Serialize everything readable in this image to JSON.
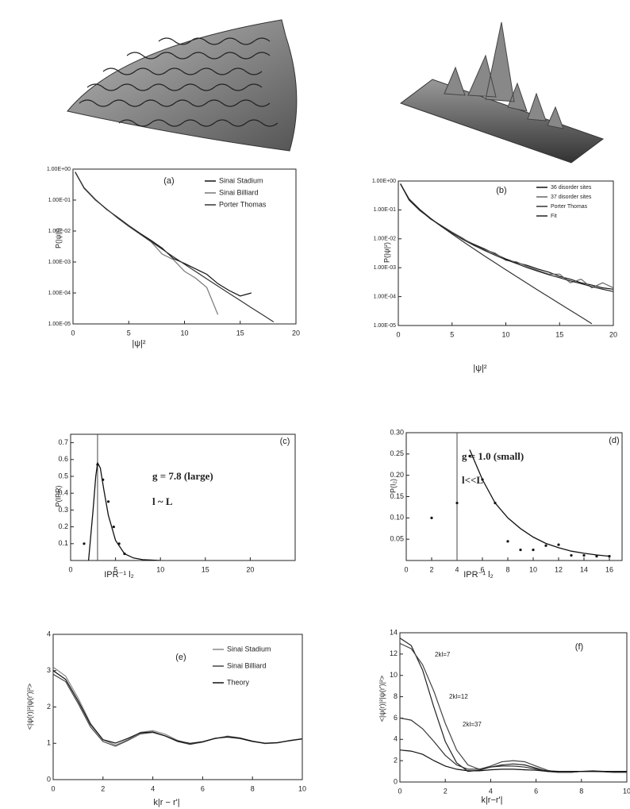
{
  "chart_data": [
    {
      "type": "line",
      "title": "(a)",
      "xlabel": "|ψ|²",
      "ylabel": "P(|ψ|²)",
      "yscale": "log",
      "xlim": [
        0,
        20
      ],
      "xticks": [
        0,
        5,
        10,
        15,
        20
      ],
      "ylim": [
        1e-05,
        1
      ],
      "yticks": [
        {
          "value": 1e-05,
          "label": "1.00E-05"
        },
        {
          "value": 0.0001,
          "label": "1.00E-04"
        },
        {
          "value": 0.001,
          "label": "1.00E-03"
        },
        {
          "value": 0.01,
          "label": "1.00E-02"
        },
        {
          "value": 0.1,
          "label": "1.00E-01"
        },
        {
          "value": 1,
          "label": "1.00E+00"
        }
      ],
      "x": [
        0.2,
        1,
        2,
        3,
        4,
        5,
        6,
        7,
        8,
        9,
        10,
        11,
        12,
        13,
        14,
        15,
        16,
        17,
        18,
        19
      ],
      "series": [
        {
          "name": "Sinai Stadium",
          "color": "#111111",
          "values": [
            0.8,
            0.25,
            0.105,
            0.05,
            0.028,
            0.015,
            0.0085,
            0.005,
            0.0028,
            0.0013,
            0.0009,
            0.0006,
            0.0004,
            0.0002,
            0.00012,
            8e-05,
            0.0001,
            null,
            null,
            null
          ]
        },
        {
          "name": "Sinai Billiard",
          "color": "#777777",
          "values": [
            0.78,
            0.24,
            0.1,
            0.052,
            0.026,
            0.014,
            0.008,
            0.0045,
            0.0018,
            0.0012,
            0.0005,
            0.0003,
            0.00015,
            2e-05,
            null,
            null,
            null,
            null,
            null,
            null
          ]
        },
        {
          "name": "Porter Thomas",
          "color": "#333333",
          "values": [
            0.807,
            0.242,
            0.104,
            0.0514,
            0.027,
            0.0146,
            0.0081,
            0.00455,
            0.00258,
            0.00148,
            0.00085,
            0.000492,
            0.000286,
            0.000166,
            9.72e-05,
            5.7e-05,
            3.34e-05,
            1.97e-05,
            1.16e-05,
            null
          ]
        }
      ]
    },
    {
      "type": "line",
      "title": "(b)",
      "xlabel": "|ψ|²",
      "ylabel": "P(|ψ|²)",
      "yscale": "log",
      "xlim": [
        0,
        20
      ],
      "xticks": [
        0,
        5,
        10,
        15,
        20
      ],
      "ylim": [
        1e-05,
        1
      ],
      "yticks": [
        {
          "value": 1e-05,
          "label": "1.00E-05"
        },
        {
          "value": 0.0001,
          "label": "1.00E-04"
        },
        {
          "value": 0.001,
          "label": "1.00E-03"
        },
        {
          "value": 0.01,
          "label": "1.00E-02"
        },
        {
          "value": 0.1,
          "label": "1.00E-01"
        },
        {
          "value": 1,
          "label": "1.00E+00"
        }
      ],
      "x": [
        0.2,
        1,
        2,
        3,
        4,
        5,
        6,
        7,
        8,
        9,
        10,
        11,
        12,
        13,
        14,
        15,
        16,
        17,
        18,
        19,
        20
      ],
      "series": [
        {
          "name": "36 disorder sites",
          "color": "#111111",
          "values": [
            0.8,
            0.22,
            0.095,
            0.05,
            0.027,
            0.016,
            0.01,
            0.0065,
            0.0045,
            0.003,
            0.002,
            0.0015,
            0.0012,
            0.0009,
            0.0007,
            0.0005,
            0.0004,
            0.0003,
            0.00025,
            0.0002,
            0.00018
          ]
        },
        {
          "name": "37 disorder sites",
          "color": "#666666",
          "values": [
            0.78,
            0.23,
            0.1,
            0.048,
            0.029,
            0.017,
            0.0105,
            0.006,
            0.0042,
            0.0032,
            0.0018,
            0.0016,
            0.0011,
            0.0008,
            0.0006,
            0.0006,
            0.0003,
            0.0004,
            0.0002,
            0.0003,
            0.0002
          ]
        },
        {
          "name": "Porter Thomas",
          "color": "#333333",
          "values": [
            0.807,
            0.242,
            0.104,
            0.0514,
            0.027,
            0.0146,
            0.0081,
            0.00455,
            0.00258,
            0.00148,
            0.00085,
            0.000492,
            0.000286,
            0.000166,
            9.72e-05,
            5.7e-05,
            3.34e-05,
            1.97e-05,
            1.16e-05,
            null,
            null
          ]
        },
        {
          "name": "Fit",
          "color": "#222222",
          "values": [
            0.8,
            0.23,
            0.1,
            0.05,
            0.028,
            0.016,
            0.0095,
            0.006,
            0.004,
            0.0027,
            0.0019,
            0.0014,
            0.001,
            0.00075,
            0.00057,
            0.00045,
            0.00035,
            0.00028,
            0.00022,
            0.00018,
            0.00015
          ]
        }
      ]
    },
    {
      "type": "scatter",
      "title": "(c)",
      "xlabel": "IPR⁻¹ l₂",
      "ylabel": "P(IPR)",
      "annotations": [
        "g = 7.8 (large)",
        "l ~ L"
      ],
      "xlim": [
        0,
        25
      ],
      "xticks": [
        0,
        5,
        10,
        15,
        20
      ],
      "ylim": [
        0,
        0.75
      ],
      "yticks": [
        0.1,
        0.2,
        0.3,
        0.4,
        0.5,
        0.6,
        0.7
      ],
      "vline": 3,
      "points": {
        "x": [
          1.5,
          3,
          3.6,
          4.2,
          4.8,
          5.4,
          6
        ],
        "y": [
          0.1,
          0.57,
          0.48,
          0.35,
          0.2,
          0.1,
          0.04
        ]
      },
      "curve": {
        "x": [
          2,
          2.5,
          2.8,
          3,
          3.3,
          3.7,
          4.2,
          5,
          6,
          7,
          8,
          10
        ],
        "y": [
          0,
          0.3,
          0.5,
          0.58,
          0.55,
          0.42,
          0.27,
          0.12,
          0.04,
          0.015,
          0.005,
          0
        ]
      }
    },
    {
      "type": "scatter",
      "title": "(d)",
      "xlabel": "IPR⁻¹ l₂",
      "ylabel": "P(I₂)",
      "annotations": [
        "g = 1.0 (small)",
        "l<<L"
      ],
      "xlim": [
        0,
        17
      ],
      "xticks": [
        0,
        2,
        4,
        6,
        8,
        10,
        12,
        14,
        16
      ],
      "ylim": [
        0,
        0.3
      ],
      "yticks": [
        {
          "value": 0.05,
          "label": "0.05"
        },
        {
          "value": 0.1,
          "label": "0.10"
        },
        {
          "value": 0.15,
          "label": "0.15"
        },
        {
          "value": 0.2,
          "label": "0.20"
        },
        {
          "value": 0.25,
          "label": "0.25"
        },
        {
          "value": 0.3,
          "label": "0.30"
        }
      ],
      "vline": 4,
      "points": {
        "x": [
          2,
          4,
          5,
          6,
          7,
          8,
          9,
          10,
          11,
          12,
          13,
          14,
          15,
          16
        ],
        "y": [
          0.1,
          0.135,
          0.245,
          0.19,
          0.135,
          0.045,
          0.025,
          0.025,
          0.035,
          0.037,
          0.012,
          0.012,
          0.01,
          0.01
        ]
      },
      "curve": {
        "x": [
          5,
          6,
          7,
          8,
          9,
          10,
          11,
          12,
          13,
          14,
          15,
          16
        ],
        "y": [
          0.26,
          0.19,
          0.135,
          0.1,
          0.075,
          0.055,
          0.04,
          0.03,
          0.022,
          0.017,
          0.013,
          0.01
        ]
      }
    },
    {
      "type": "line",
      "title": "(e)",
      "xlabel": "k|r − r'|",
      "ylabel": "<|ψ(r)|²|ψ(r')|²>",
      "xlim": [
        0,
        10
      ],
      "xticks": [
        0,
        2,
        4,
        6,
        8,
        10
      ],
      "ylim": [
        0,
        4
      ],
      "yticks": [
        0,
        1,
        2,
        3,
        4
      ],
      "x": [
        0,
        0.5,
        1,
        1.5,
        2,
        2.5,
        3,
        3.5,
        4,
        4.5,
        5,
        5.5,
        6,
        6.5,
        7,
        7.5,
        8,
        8.5,
        9,
        9.5,
        10
      ],
      "series": [
        {
          "name": "Sinai Stadium",
          "color": "#888888",
          "values": [
            3.1,
            2.85,
            2.25,
            1.55,
            1.1,
            0.95,
            1.1,
            1.3,
            1.35,
            1.25,
            1.08,
            0.98,
            1.03,
            1.13,
            1.2,
            1.15,
            1.06,
            0.99,
            1.01,
            1.08,
            1.13
          ]
        },
        {
          "name": "Sinai Billiard",
          "color": "#444444",
          "values": [
            2.9,
            2.7,
            2.1,
            1.45,
            1.05,
            0.92,
            1.08,
            1.26,
            1.3,
            1.2,
            1.05,
            0.97,
            1.04,
            1.14,
            1.17,
            1.13,
            1.05,
            1.0,
            1.02,
            1.07,
            1.12
          ]
        },
        {
          "name": "Theory",
          "color": "#111111",
          "values": [
            3,
            2.76,
            2.17,
            1.52,
            1.1,
            1.005,
            1.135,
            1.289,
            1.315,
            1.205,
            1.063,
            1.0,
            1.045,
            1.135,
            1.18,
            1.142,
            1.059,
            1.004,
            1.016,
            1.075,
            1.121
          ]
        }
      ]
    },
    {
      "type": "line",
      "title": "(f)",
      "xlabel": "k|r−r'|",
      "ylabel": "<|ψ(r)|²|ψ(r')|²>",
      "annotations": [
        "2kl=7",
        "2kl=12",
        "2kl=37"
      ],
      "xlim": [
        0,
        10
      ],
      "xticks": [
        0,
        2,
        4,
        6,
        8,
        10
      ],
      "ylim": [
        0,
        14
      ],
      "yticks": [
        0,
        2,
        4,
        6,
        8,
        10,
        12,
        14
      ],
      "x": [
        0,
        0.5,
        1,
        1.5,
        2,
        2.5,
        3,
        3.5,
        4,
        4.5,
        5,
        5.5,
        6,
        6.5,
        7,
        7.5,
        8,
        8.5,
        9,
        9.5,
        10
      ],
      "series": [
        {
          "color": "#222222",
          "values": [
            13.5,
            12.8,
            10.5,
            7,
            3.8,
            1.8,
            1.0,
            1.1,
            1.4,
            1.6,
            1.7,
            1.6,
            1.3,
            1.0,
            0.9,
            0.9,
            1.0,
            1.0,
            0.95,
            0.9,
            0.9
          ]
        },
        {
          "color": "#444444",
          "values": [
            13,
            12.5,
            11,
            8.5,
            5.5,
            3,
            1.6,
            1.2,
            1.5,
            1.9,
            2.0,
            1.9,
            1.5,
            1.1,
            0.9,
            0.9,
            1.0,
            1.05,
            1.0,
            0.9,
            0.9
          ]
        },
        {
          "color": "#333333",
          "values": [
            6,
            5.8,
            5,
            3.8,
            2.5,
            1.6,
            1.2,
            1.2,
            1.4,
            1.5,
            1.5,
            1.4,
            1.2,
            1.05,
            1.0,
            1.0,
            1.0,
            1.0,
            0.98,
            0.95,
            0.95
          ]
        },
        {
          "color": "#111111",
          "values": [
            3,
            2.9,
            2.6,
            2.0,
            1.5,
            1.2,
            1.05,
            1.05,
            1.15,
            1.2,
            1.2,
            1.15,
            1.1,
            1.0,
            1.0,
            1.0,
            1.0,
            1.0,
            1.0,
            1.0,
            1.0
          ]
        }
      ]
    }
  ]
}
